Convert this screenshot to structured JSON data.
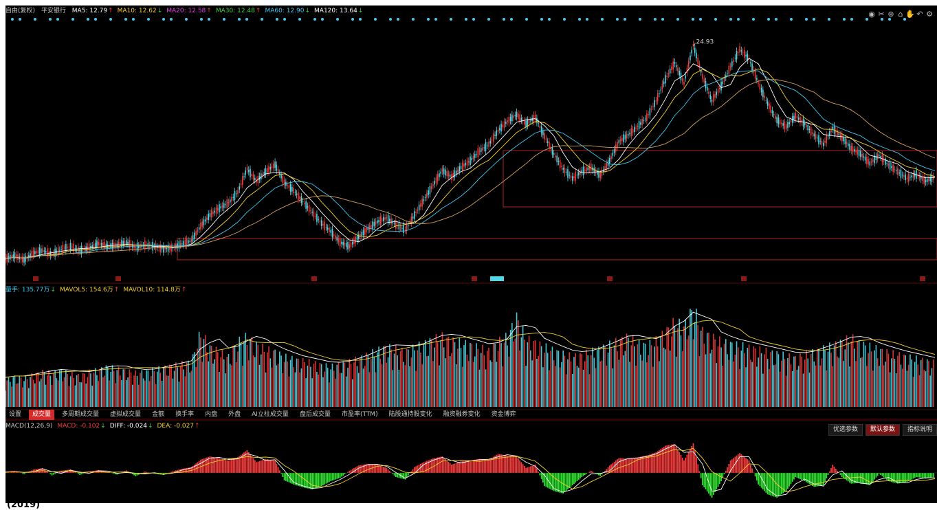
{
  "ma_legend": {
    "prefix": "自由(复权)",
    "stock": "平安银行",
    "items": [
      {
        "label": "MA5: 12.79",
        "arrow": "↑",
        "color": "#ffffff"
      },
      {
        "label": "MA10: 12.62",
        "arrow": "↓",
        "color": "#f5d130"
      },
      {
        "label": "MA20: 12.58",
        "arrow": "↑",
        "color": "#e040e0"
      },
      {
        "label": "MA30: 12.48",
        "arrow": "↑",
        "color": "#40d040"
      },
      {
        "label": "MA60: 12.90",
        "arrow": "↓",
        "color": "#40c8f0"
      },
      {
        "label": "MA120: 13.64",
        "arrow": "↓",
        "color": "#ffffff"
      }
    ]
  },
  "price_annotation": "24.93",
  "vol_legend": {
    "items": [
      {
        "label": "量手: 135.77万",
        "arrow": "↓",
        "color": "#40c8f0"
      },
      {
        "label": "MAVOL5: 154.6万",
        "arrow": "↑",
        "color": "#f5d130"
      },
      {
        "label": "MAVOL10: 114.8万",
        "arrow": "↑",
        "color": "#f5d130"
      }
    ]
  },
  "tabs": [
    "设置",
    "成交量",
    "多周期成交量",
    "虚拟成交量",
    "金额",
    "换手率",
    "内盘",
    "外盘",
    "AI立柱成交量",
    "盘后成交量",
    "市盈率(TTM)",
    "陆股通持股变化",
    "融资融券变化",
    "资金博弈"
  ],
  "active_tab": 1,
  "macd_legend": {
    "items": [
      {
        "label": "MACD(12,26,9)",
        "arrow": "",
        "color": "#c8c8c8"
      },
      {
        "label": "MACD: -0.102",
        "arrow": "↓",
        "color": "#f04040"
      },
      {
        "label": "DIFF: -0.024",
        "arrow": "↓",
        "color": "#ffffff"
      },
      {
        "label": "DEA: -0.027",
        "arrow": "↑",
        "color": "#f5d130"
      }
    ]
  },
  "param_buttons": [
    "优选参数",
    "默认参数",
    "指标说明"
  ],
  "active_param": 1,
  "bottom_label": "(2019)",
  "tool_icons": [
    "eye-icon",
    "scissors-icon",
    "compass-icon",
    "lock-icon",
    "hand-icon",
    "undo-icon",
    "settings-icon"
  ],
  "colors": {
    "up": "#f03c3c",
    "down": "#4fd8e8",
    "frame": "#b02020",
    "ma_short": "#ffffff",
    "ma_mid": "#f5d130",
    "ma_long": "#40c8f0"
  },
  "chart_data": {
    "type": "line",
    "title": "",
    "series": [
      {
        "name": "price",
        "values": [
          9.2,
          9.4,
          9.1,
          9.6,
          9.8,
          9.5,
          9.9,
          10.1,
          9.8,
          10.0,
          10.3,
          10.1,
          10.2,
          10.4,
          10.0,
          10.2,
          10.1,
          9.9,
          10.0,
          10.3,
          10.5,
          11.6,
          12.4,
          12.9,
          13.3,
          14.1,
          15.8,
          14.9,
          15.6,
          16.1,
          14.8,
          14.2,
          13.4,
          12.6,
          11.8,
          11.2,
          10.4,
          10.1,
          10.8,
          11.4,
          11.9,
          12.2,
          11.7,
          11.3,
          12.4,
          13.5,
          14.6,
          15.7,
          15.2,
          15.9,
          16.4,
          17.1,
          17.6,
          18.6,
          19.3,
          19.8,
          19.1,
          19.6,
          18.2,
          16.9,
          15.8,
          15.1,
          15.6,
          15.9,
          15.3,
          16.4,
          17.8,
          18.3,
          18.9,
          19.6,
          20.8,
          22.4,
          23.6,
          22.1,
          24.9,
          22.6,
          20.8,
          21.9,
          23.3,
          24.6,
          23.9,
          22.1,
          20.6,
          19.4,
          18.9,
          19.7,
          19.1,
          18.3,
          17.6,
          18.8,
          18.1,
          17.3,
          16.9,
          16.2,
          16.8,
          16.1,
          15.6,
          15.1,
          15.4,
          14.9,
          15.2
        ]
      },
      {
        "name": "volume",
        "values": [
          55,
          60,
          58,
          64,
          70,
          68,
          72,
          66,
          62,
          70,
          74,
          80,
          76,
          72,
          68,
          70,
          74,
          78,
          82,
          86,
          90,
          150,
          120,
          110,
          100,
          130,
          140,
          125,
          115,
          110,
          100,
          95,
          92,
          88,
          84,
          80,
          86,
          90,
          96,
          104,
          112,
          120,
          115,
          110,
          118,
          126,
          134,
          140,
          132,
          128,
          124,
          118,
          112,
          130,
          140,
          180,
          136,
          128,
          120,
          112,
          106,
          100,
          104,
          110,
          116,
          124,
          132,
          140,
          128,
          122,
          132,
          150,
          170,
          160,
          200,
          150,
          140,
          130,
          126,
          122,
          118,
          114,
          110,
          106,
          102,
          98,
          104,
          110,
          116,
          122,
          130,
          138,
          126,
          120,
          114,
          108,
          104,
          100,
          96,
          92,
          88
        ]
      },
      {
        "name": "MACD",
        "values": [
          0.02,
          0.05,
          -0.03,
          0.08,
          0.12,
          -0.06,
          0.04,
          0.09,
          -0.05,
          0.03,
          0.07,
          0.02,
          -0.04,
          0.06,
          -0.08,
          0.03,
          -0.02,
          -0.05,
          0.04,
          0.1,
          0.14,
          0.32,
          0.4,
          0.35,
          0.3,
          0.38,
          0.55,
          0.26,
          0.34,
          0.3,
          -0.18,
          -0.28,
          -0.35,
          -0.4,
          -0.32,
          -0.2,
          -0.12,
          0.05,
          0.18,
          0.22,
          0.2,
          0.12,
          -0.1,
          -0.16,
          0.14,
          0.26,
          0.35,
          0.4,
          0.2,
          0.28,
          0.3,
          0.34,
          0.32,
          0.46,
          0.42,
          0.4,
          0.12,
          0.2,
          -0.32,
          -0.44,
          -0.5,
          -0.3,
          -0.1,
          0.05,
          -0.08,
          0.18,
          0.36,
          0.34,
          0.38,
          0.42,
          0.5,
          0.66,
          0.7,
          0.3,
          0.72,
          -0.3,
          -0.6,
          -0.2,
          0.3,
          0.48,
          0.3,
          -0.28,
          -0.52,
          -0.6,
          -0.44,
          -0.1,
          -0.2,
          -0.34,
          -0.3,
          0.2,
          -0.1,
          -0.26,
          -0.24,
          -0.3,
          -0.02,
          -0.2,
          -0.26,
          -0.22,
          -0.1,
          -0.14,
          -0.1
        ]
      }
    ],
    "price_range": [
      8.5,
      26.0
    ],
    "grid": false,
    "legend": "top-left"
  }
}
